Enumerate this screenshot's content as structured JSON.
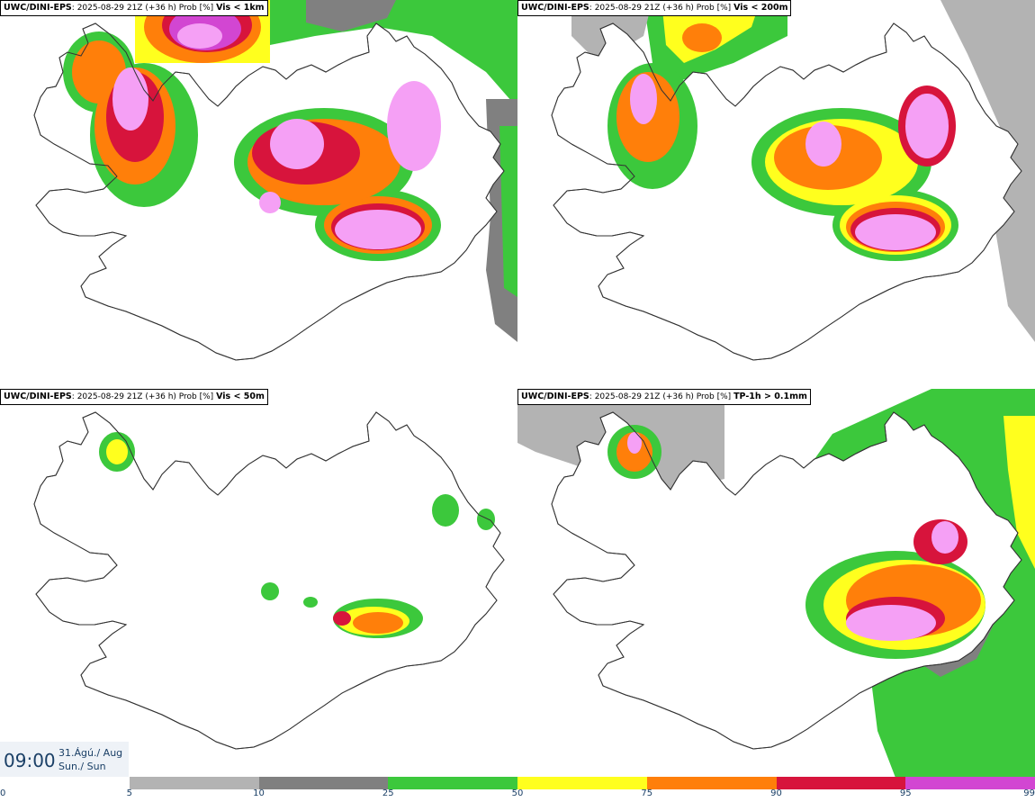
{
  "panels": [
    {
      "model": "UWC/DINI-EPS",
      "run": "2025-08-29 21Z (+36 h) Prob [%]",
      "param": "Vis < 1km"
    },
    {
      "model": "UWC/DINI-EPS",
      "run": "2025-08-29 21Z (+36 h) Prob [%]",
      "param": "Vis < 200m"
    },
    {
      "model": "UWC/DINI-EPS",
      "run": "2025-08-29 21Z (+36 h) Prob [%]",
      "param": "Vis < 50m"
    },
    {
      "model": "UWC/DINI-EPS",
      "run": "2025-08-29 21Z (+36 h) Prob [%]",
      "param": "TP-1h > 0.1mm"
    }
  ],
  "validity": {
    "time": "09:00",
    "date_line1": "31.Ágú./ Aug",
    "date_line2": "Sun./ Sun"
  },
  "legend": {
    "ticks": [
      "0",
      "5",
      "10",
      "25",
      "50",
      "75",
      "90",
      "95",
      "99"
    ],
    "colors": [
      "#ffffff",
      "#b3b3b3",
      "#808080",
      "#3cc83c",
      "#ffff1e",
      "#ff7f0a",
      "#d7143c",
      "#d246d2",
      "#f5a0f5"
    ]
  }
}
